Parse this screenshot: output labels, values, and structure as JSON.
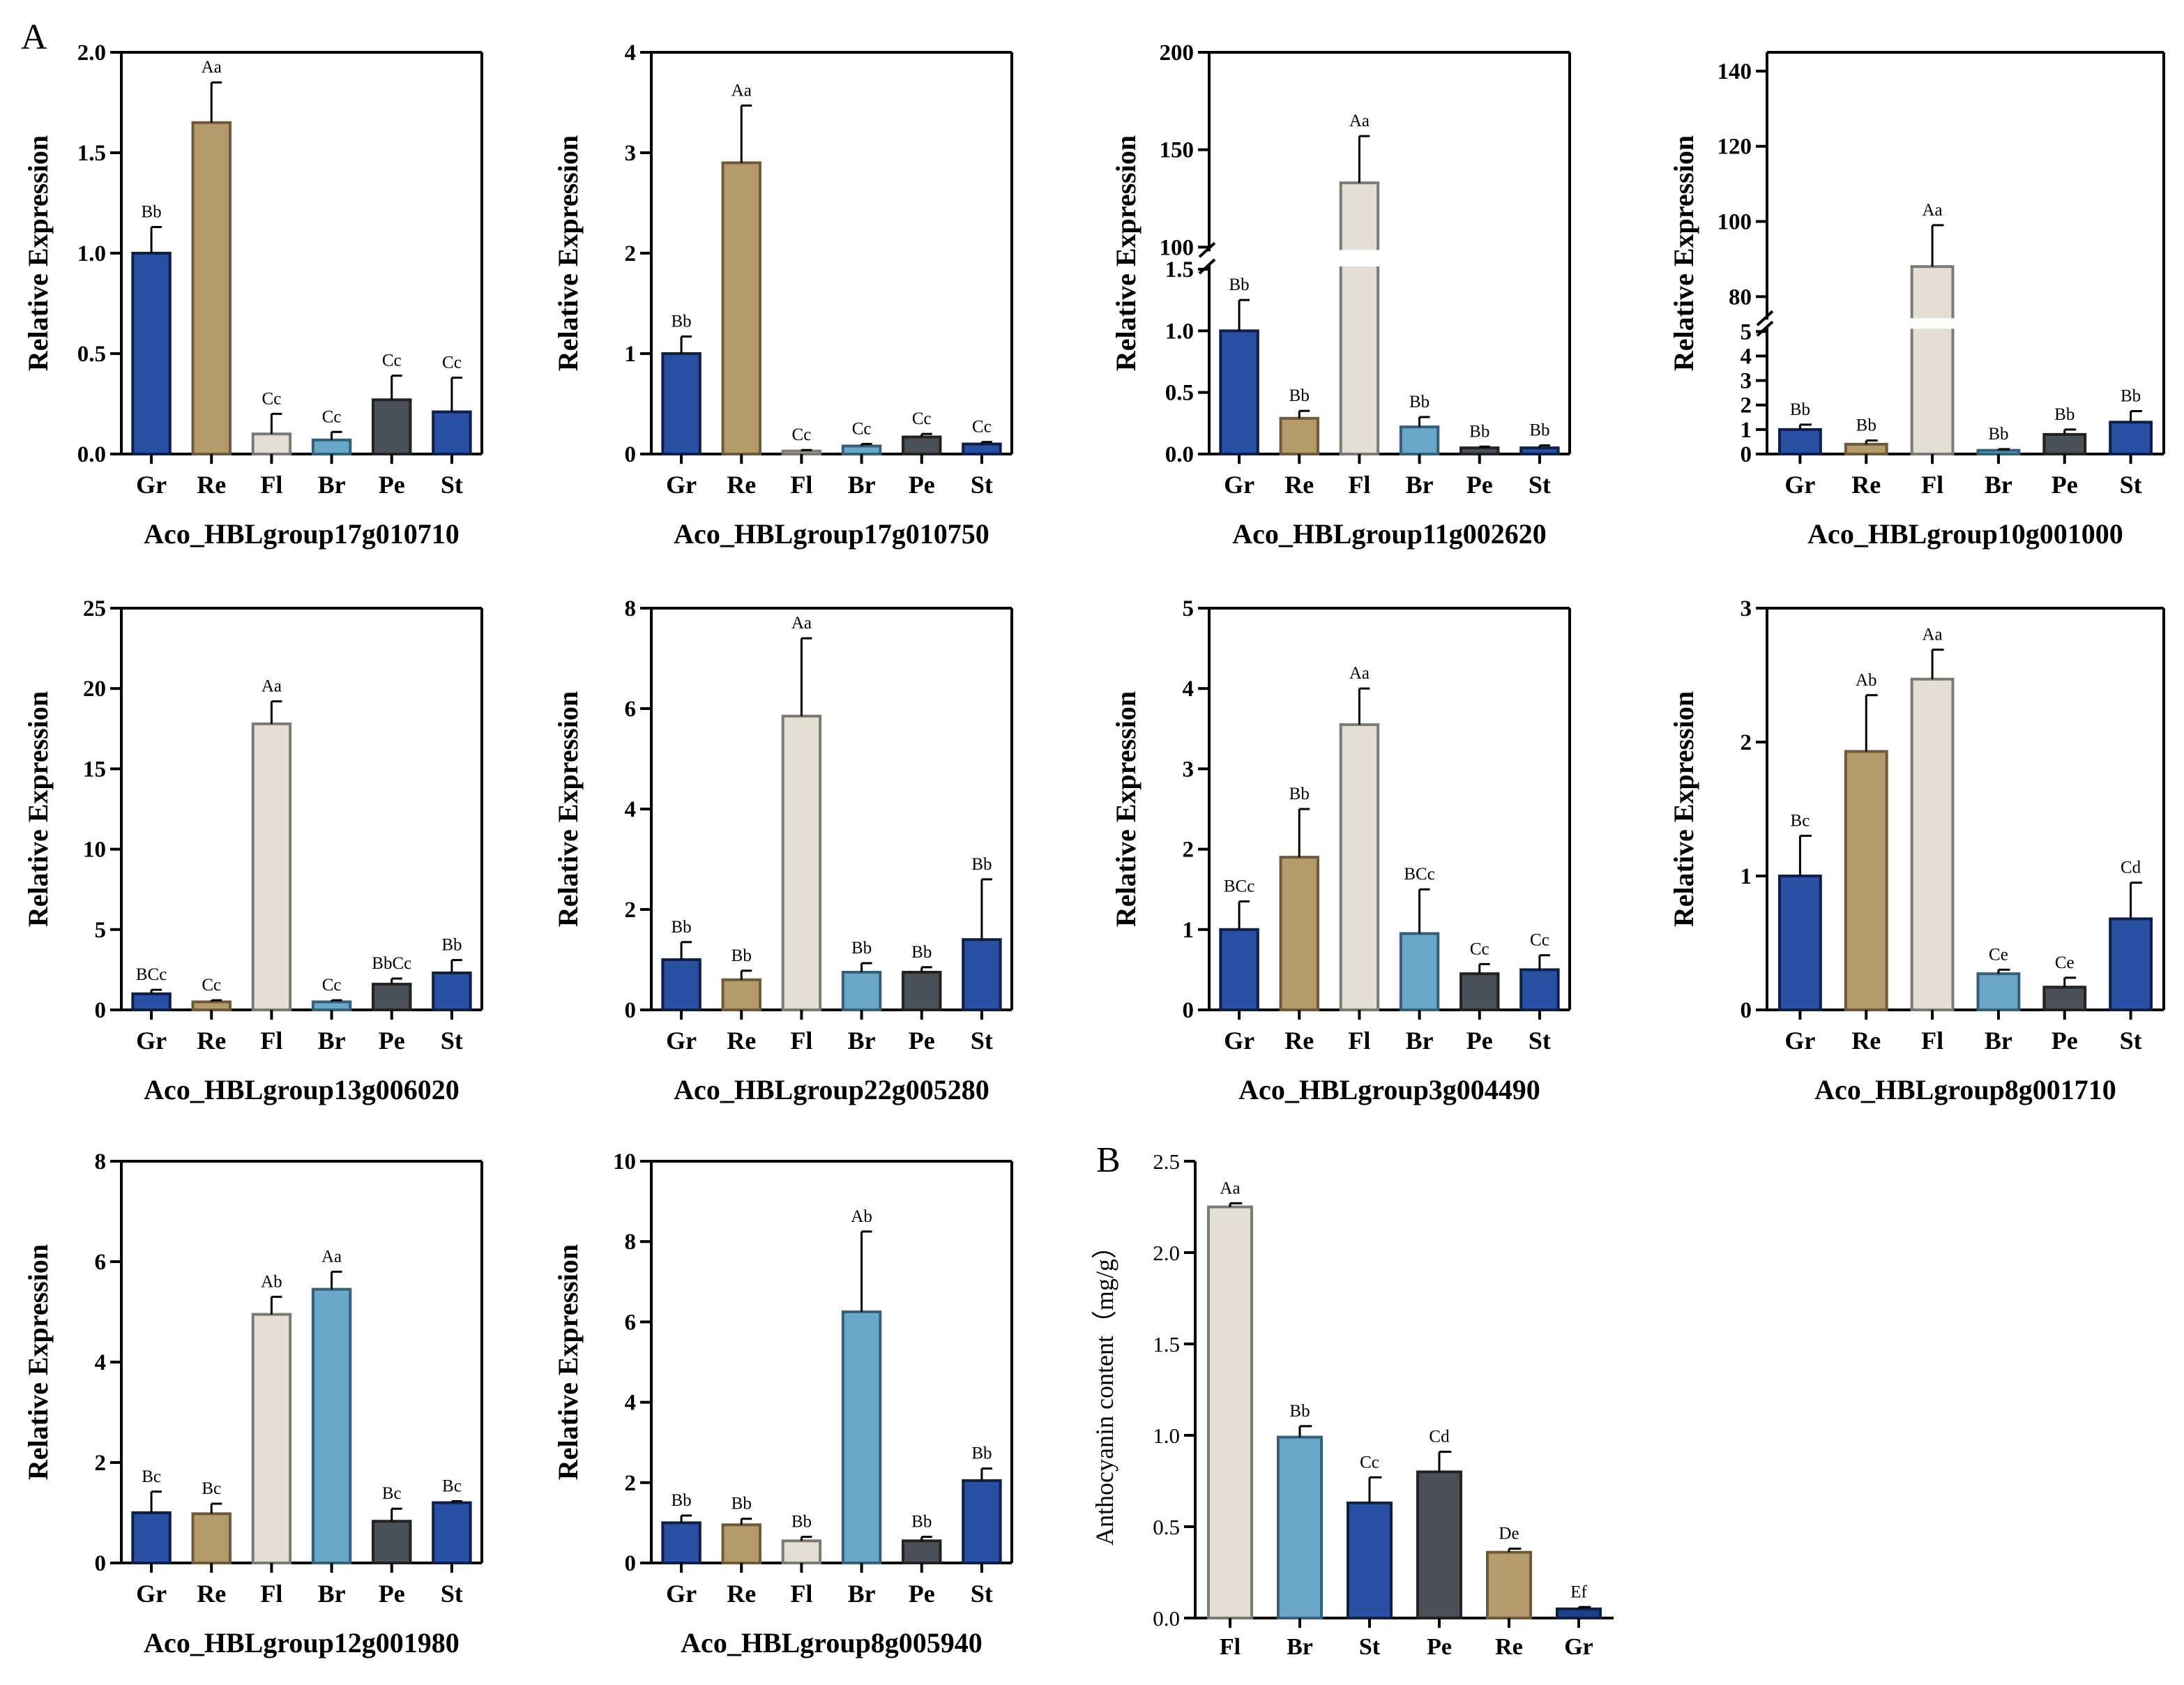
{
  "figure": {
    "panel_labels": [
      "A",
      "B"
    ]
  },
  "colors": {
    "Gr": "#2a50a4",
    "Re": "#b59a6c",
    "Fl": "#e4dfd5",
    "Br": "#6aa7c8",
    "Pe": "#4b4f57",
    "St": "#2a50a4",
    "Gr_B": "#1d3f87"
  },
  "chart_data": [
    {
      "type": "bar",
      "title": "Aco_HBLgroup17g010710",
      "ylabel": "Relative Expression",
      "categories": [
        "Gr",
        "Re",
        "Fl",
        "Br",
        "Pe",
        "St"
      ],
      "values": [
        1.0,
        1.65,
        0.1,
        0.07,
        0.27,
        0.21
      ],
      "errors": [
        0.13,
        0.2,
        0.1,
        0.04,
        0.12,
        0.17
      ],
      "labels": [
        "Bb",
        "Aa",
        "Cc",
        "Cc",
        "Cc",
        "Cc"
      ],
      "ylim": [
        0,
        2.0
      ],
      "yticks": [
        "0.0",
        "0.5",
        "1.0",
        "1.5",
        "2.0"
      ]
    },
    {
      "type": "bar",
      "title": "Aco_HBLgroup17g010750",
      "ylabel": "Relative Expression",
      "categories": [
        "Gr",
        "Re",
        "Fl",
        "Br",
        "Pe",
        "St"
      ],
      "values": [
        1.0,
        2.9,
        0.03,
        0.08,
        0.17,
        0.1
      ],
      "errors": [
        0.17,
        0.57,
        0.01,
        0.02,
        0.03,
        0.02
      ],
      "labels": [
        "Bb",
        "Aa",
        "Cc",
        "Cc",
        "Cc",
        "Cc"
      ],
      "ylim": [
        0,
        4
      ],
      "yticks": [
        "0",
        "1",
        "2",
        "3",
        "4"
      ]
    },
    {
      "type": "bar",
      "title": "Aco_HBLgroup11g002620",
      "ylabel": "Relative Expression",
      "categories": [
        "Gr",
        "Re",
        "Fl",
        "Br",
        "Pe",
        "St"
      ],
      "values": [
        1.0,
        0.29,
        133,
        0.22,
        0.05,
        0.05
      ],
      "errors": [
        0.25,
        0.06,
        24,
        0.08,
        0.01,
        0.02
      ],
      "labels": [
        "Bb",
        "Bb",
        "Aa",
        "Bb",
        "Bb",
        "Bb"
      ],
      "broken_axis": {
        "lower": [
          0,
          1.5
        ],
        "upper": [
          100,
          200
        ]
      },
      "yticks_lower": [
        "0.0",
        "0.5",
        "1.0",
        "1.5"
      ],
      "yticks_upper": [
        "100",
        "150",
        "200"
      ]
    },
    {
      "type": "bar",
      "title": "Aco_HBLgroup10g001000",
      "ylabel": "Relative Expression",
      "categories": [
        "Gr",
        "Re",
        "Fl",
        "Br",
        "Pe",
        "St"
      ],
      "values": [
        1.0,
        0.4,
        88,
        0.15,
        0.8,
        1.3
      ],
      "errors": [
        0.2,
        0.15,
        11,
        0.05,
        0.2,
        0.45
      ],
      "labels": [
        "Bb",
        "Bb",
        "Aa",
        "Bb",
        "Bb",
        "Bb"
      ],
      "broken_axis": {
        "lower": [
          0,
          5
        ],
        "upper": [
          75,
          145
        ]
      },
      "yticks_lower": [
        "0",
        "1",
        "2",
        "3",
        "4",
        "5"
      ],
      "yticks_upper": [
        "80",
        "100",
        "120",
        "140"
      ]
    },
    {
      "type": "bar",
      "title": "Aco_HBLgroup13g006020",
      "ylabel": "Relative Expression",
      "categories": [
        "Gr",
        "Re",
        "Fl",
        "Br",
        "Pe",
        "St"
      ],
      "values": [
        1.0,
        0.5,
        17.8,
        0.5,
        1.6,
        2.3
      ],
      "errors": [
        0.25,
        0.1,
        1.4,
        0.1,
        0.35,
        0.8
      ],
      "labels": [
        "BCc",
        "Cc",
        "Aa",
        "Cc",
        "BbCc",
        "Bb"
      ],
      "ylim": [
        0,
        25
      ],
      "yticks": [
        "0",
        "5",
        "10",
        "15",
        "20",
        "25"
      ]
    },
    {
      "type": "bar",
      "title": "Aco_HBLgroup22g005280",
      "ylabel": "Relative Expression",
      "categories": [
        "Gr",
        "Re",
        "Fl",
        "Br",
        "Pe",
        "St"
      ],
      "values": [
        1.0,
        0.6,
        5.85,
        0.75,
        0.75,
        1.4
      ],
      "errors": [
        0.35,
        0.18,
        1.55,
        0.18,
        0.1,
        1.2
      ],
      "labels": [
        "Bb",
        "Bb",
        "Aa",
        "Bb",
        "Bb",
        "Bb"
      ],
      "ylim": [
        0,
        8
      ],
      "yticks": [
        "0",
        "2",
        "4",
        "6",
        "8"
      ]
    },
    {
      "type": "bar",
      "title": "Aco_HBLgroup3g004490",
      "ylabel": "Relative Expression",
      "categories": [
        "Gr",
        "Re",
        "Fl",
        "Br",
        "Pe",
        "St"
      ],
      "values": [
        1.0,
        1.9,
        3.55,
        0.95,
        0.45,
        0.5
      ],
      "errors": [
        0.35,
        0.6,
        0.45,
        0.55,
        0.12,
        0.18
      ],
      "labels": [
        "BCc",
        "Bb",
        "Aa",
        "BCc",
        "Cc",
        "Cc"
      ],
      "ylim": [
        0,
        5
      ],
      "yticks": [
        "0",
        "1",
        "2",
        "3",
        "4",
        "5"
      ]
    },
    {
      "type": "bar",
      "title": "Aco_HBLgroup8g001710",
      "ylabel": "Relative Expression",
      "categories": [
        "Gr",
        "Re",
        "Fl",
        "Br",
        "Pe",
        "St"
      ],
      "values": [
        1.0,
        1.93,
        2.47,
        0.27,
        0.17,
        0.68
      ],
      "errors": [
        0.3,
        0.42,
        0.22,
        0.03,
        0.07,
        0.27
      ],
      "labels": [
        "Bc",
        "Ab",
        "Aa",
        "Ce",
        "Ce",
        "Cd"
      ],
      "ylim": [
        0,
        3
      ],
      "yticks": [
        "0",
        "1",
        "2",
        "3"
      ]
    },
    {
      "type": "bar",
      "title": "Aco_HBLgroup12g001980",
      "ylabel": "Relative Expression",
      "categories": [
        "Gr",
        "Re",
        "Fl",
        "Br",
        "Pe",
        "St"
      ],
      "values": [
        1.0,
        0.98,
        4.95,
        5.45,
        0.83,
        1.2
      ],
      "errors": [
        0.42,
        0.2,
        0.35,
        0.35,
        0.25,
        0.03
      ],
      "labels": [
        "Bc",
        "Bc",
        "Ab",
        "Aa",
        "Bc",
        "Bc"
      ],
      "ylim": [
        0,
        8
      ],
      "yticks": [
        "0",
        "2",
        "4",
        "6",
        "8"
      ]
    },
    {
      "type": "bar",
      "title": "Aco_HBLgroup8g005940",
      "ylabel": "Relative Expression",
      "categories": [
        "Gr",
        "Re",
        "Fl",
        "Br",
        "Pe",
        "St"
      ],
      "values": [
        1.0,
        0.95,
        0.55,
        6.25,
        0.55,
        2.05
      ],
      "errors": [
        0.18,
        0.15,
        0.1,
        2.0,
        0.1,
        0.3
      ],
      "labels": [
        "Bb",
        "Bb",
        "Bb",
        "Ab",
        "Bb",
        "Bb"
      ],
      "ylim": [
        0,
        10
      ],
      "yticks": [
        "0",
        "2",
        "4",
        "6",
        "8",
        "10"
      ]
    },
    {
      "type": "bar",
      "title": "",
      "ylabel": "Anthocyanin content（mg/g）",
      "categories": [
        "Fl",
        "Br",
        "St",
        "Pe",
        "Re",
        "Gr"
      ],
      "values": [
        2.25,
        0.99,
        0.63,
        0.8,
        0.36,
        0.05
      ],
      "errors": [
        0.02,
        0.06,
        0.14,
        0.11,
        0.02,
        0.01
      ],
      "labels": [
        "Aa",
        "Bb",
        "Cc",
        "Cd",
        "De",
        "Ef"
      ],
      "ylim": [
        0,
        2.5
      ],
      "yticks": [
        "0.0",
        "0.5",
        "1.0",
        "1.5",
        "2.0",
        "2.5"
      ]
    }
  ]
}
